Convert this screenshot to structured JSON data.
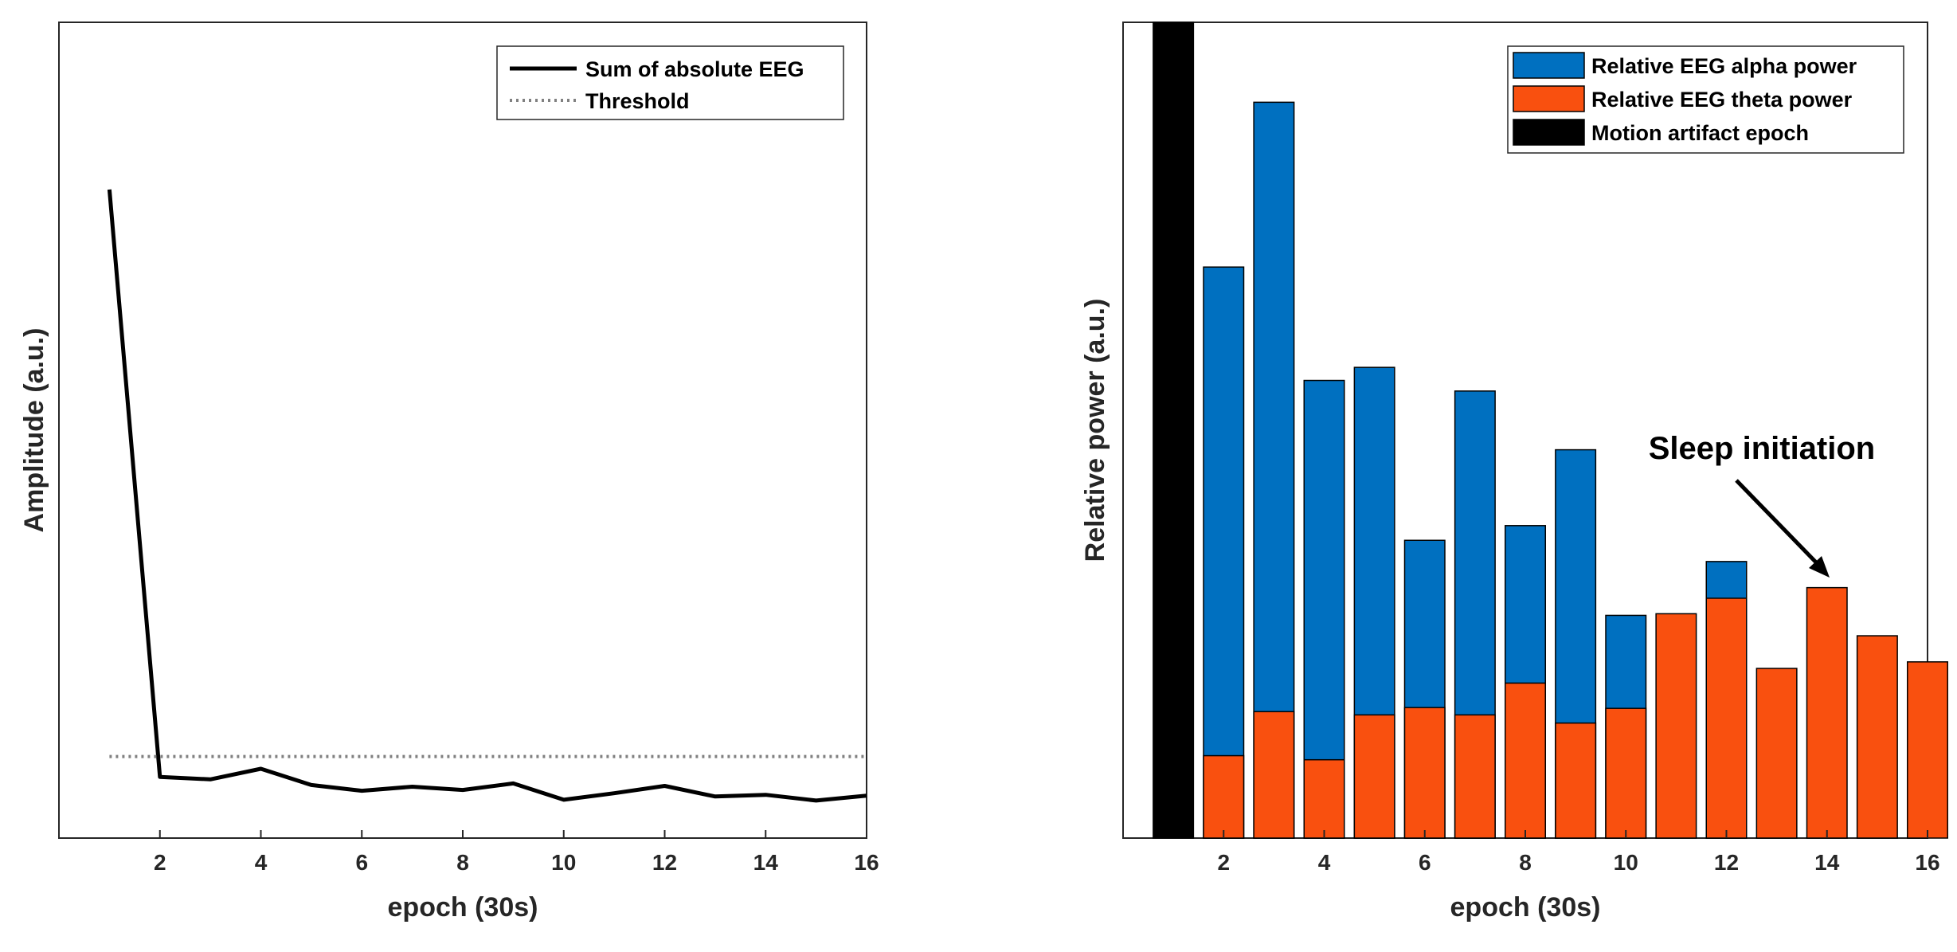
{
  "colors": {
    "line": "#000000",
    "threshold": "#808080",
    "alpha": "#0070c0",
    "theta": "#f9500f",
    "artifact": "#000000",
    "axis": "#262626"
  },
  "chart_data": [
    {
      "type": "line",
      "title": "",
      "xlabel": "epoch (30s)",
      "ylabel": "Amplitude (a.u.)",
      "xlim": [
        0,
        16
      ],
      "ylim": [
        0,
        100
      ],
      "xticks": [
        "2",
        "4",
        "6",
        "8",
        "10",
        "12",
        "14",
        "16"
      ],
      "x": [
        1,
        2,
        3,
        4,
        5,
        6,
        7,
        8,
        9,
        10,
        11,
        12,
        13,
        14,
        15,
        16
      ],
      "series": [
        {
          "name": "Sum of absolute EEG",
          "style": "solid",
          "values": [
            79.5,
            7.5,
            7.2,
            8.5,
            6.5,
            5.8,
            6.3,
            5.9,
            6.7,
            4.7,
            5.5,
            6.4,
            5.1,
            5.3,
            4.6,
            5.2
          ]
        },
        {
          "name": "Threshold",
          "style": "dotted",
          "values": [
            10,
            10,
            10,
            10,
            10,
            10,
            10,
            10,
            10,
            10,
            10,
            10,
            10,
            10,
            10,
            10
          ]
        }
      ],
      "legend": [
        "Sum of absolute EEG",
        "Threshold"
      ],
      "legend_position": "top-right"
    },
    {
      "type": "bar",
      "title": "",
      "xlabel": "epoch (30s)",
      "ylabel": "Relative power (a.u.)",
      "xlim": [
        0,
        16
      ],
      "ylim": [
        0,
        100
      ],
      "xticks": [
        "2",
        "4",
        "6",
        "8",
        "10",
        "12",
        "14",
        "16"
      ],
      "categories": [
        1,
        2,
        3,
        4,
        5,
        6,
        7,
        8,
        9,
        10,
        11,
        12,
        13,
        14,
        15,
        16
      ],
      "series": [
        {
          "name": "Relative EEG alpha power",
          "values": [
            null,
            70,
            90.2,
            56.1,
            57.7,
            36.5,
            54.8,
            38.3,
            47.6,
            27.3,
            null,
            33.9,
            null,
            null,
            null,
            null
          ]
        },
        {
          "name": "Relative EEG theta power",
          "values": [
            null,
            10.1,
            15.5,
            9.6,
            15.1,
            16,
            15.1,
            19,
            14.1,
            15.9,
            27.5,
            29.4,
            20.8,
            30.7,
            24.8,
            21.6
          ]
        },
        {
          "name": "Motion artifact epoch",
          "values": [
            100,
            null,
            null,
            null,
            null,
            null,
            null,
            null,
            null,
            null,
            null,
            null,
            null,
            null,
            null,
            null
          ]
        }
      ],
      "legend": [
        "Relative EEG alpha power",
        "Relative EEG theta power",
        "Motion artifact epoch"
      ],
      "legend_position": "top-right",
      "annotations": [
        {
          "text": "Sleep initiation",
          "target_x": 14
        }
      ]
    }
  ]
}
